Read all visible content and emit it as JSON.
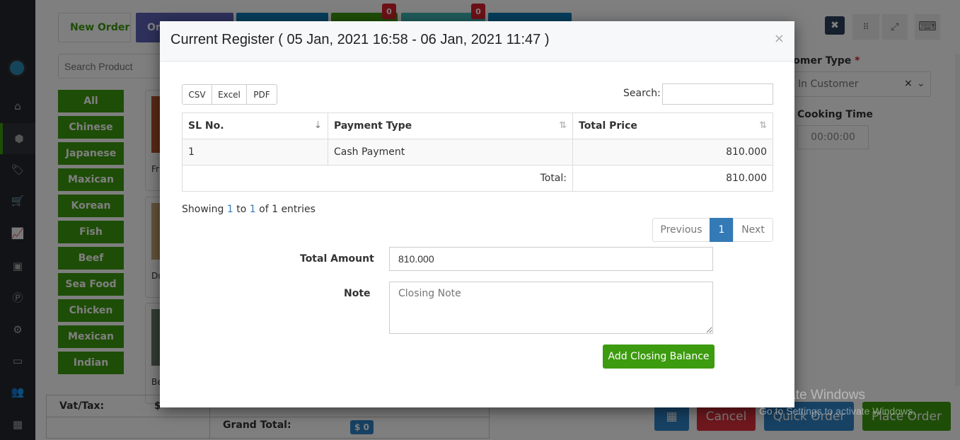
{
  "sidebar": {
    "items": [
      {
        "icon": "home-icon"
      },
      {
        "icon": "cube-icon",
        "active": true
      },
      {
        "icon": "tag-icon"
      },
      {
        "icon": "cart-icon"
      },
      {
        "icon": "chart-line-icon"
      },
      {
        "icon": "box-icon"
      },
      {
        "icon": "parking-icon"
      },
      {
        "icon": "gear-icon"
      },
      {
        "icon": "briefcase-icon"
      },
      {
        "icon": "users-icon"
      },
      {
        "icon": "qrcode-icon"
      }
    ]
  },
  "tabs": {
    "new_order": "New Order",
    "second": "On",
    "badge1": "0",
    "badge2": "0"
  },
  "search": {
    "placeholder": "Search Product"
  },
  "categories": [
    "All",
    "Chinese",
    "Japanese",
    "Maxican",
    "Korean",
    "Fish",
    "Beef",
    "Sea Food",
    "Chicken",
    "Mexican",
    "Indian"
  ],
  "products": [
    "Fr",
    "Du",
    "Be"
  ],
  "right_panel": {
    "customer_type_label": "Customer Type",
    "required": "*",
    "customer_type_value": "In Customer",
    "cooking_time_label": "Cooking Time",
    "cooking_time_value": "00:00:00"
  },
  "footer": {
    "vat_label": "Vat/Tax:",
    "vat_value": "$",
    "grand_total_label": "Grand Total:",
    "grand_total_value": "$ 0",
    "cancel": "Cancel",
    "quick_order": "Quick Order",
    "place_order": "Place Order"
  },
  "modal": {
    "title": "Current Register ( 05 Jan, 2021 16:58 - 06 Jan, 2021 11:47 )",
    "close": "×",
    "export_buttons": [
      "CSV",
      "Excel",
      "PDF"
    ],
    "search_label": "Search:",
    "search_value": "",
    "columns": [
      "SL No.",
      "Payment Type",
      "Total Price"
    ],
    "rows": [
      {
        "sl": "1",
        "type": "Cash Payment",
        "price": "810.000"
      }
    ],
    "total_label": "Total:",
    "total_value": "810.000",
    "info": {
      "prefix": "Showing ",
      "from": "1",
      "to_word": " to ",
      "to": "1",
      "suffix": " of 1 entries"
    },
    "pagination": {
      "previous": "Previous",
      "current": "1",
      "next": "Next"
    },
    "total_amount_label": "Total Amount",
    "total_amount_value": "810.000",
    "note_label": "Note",
    "note_placeholder": "Closing Note",
    "submit": "Add Closing Balance"
  },
  "watermark": {
    "title": "Activate Windows",
    "subtitle": "Go to Settings to activate Windows."
  },
  "colors": {
    "green": "#3c9b0f",
    "blue": "#337ab7",
    "red": "#d9232e"
  }
}
